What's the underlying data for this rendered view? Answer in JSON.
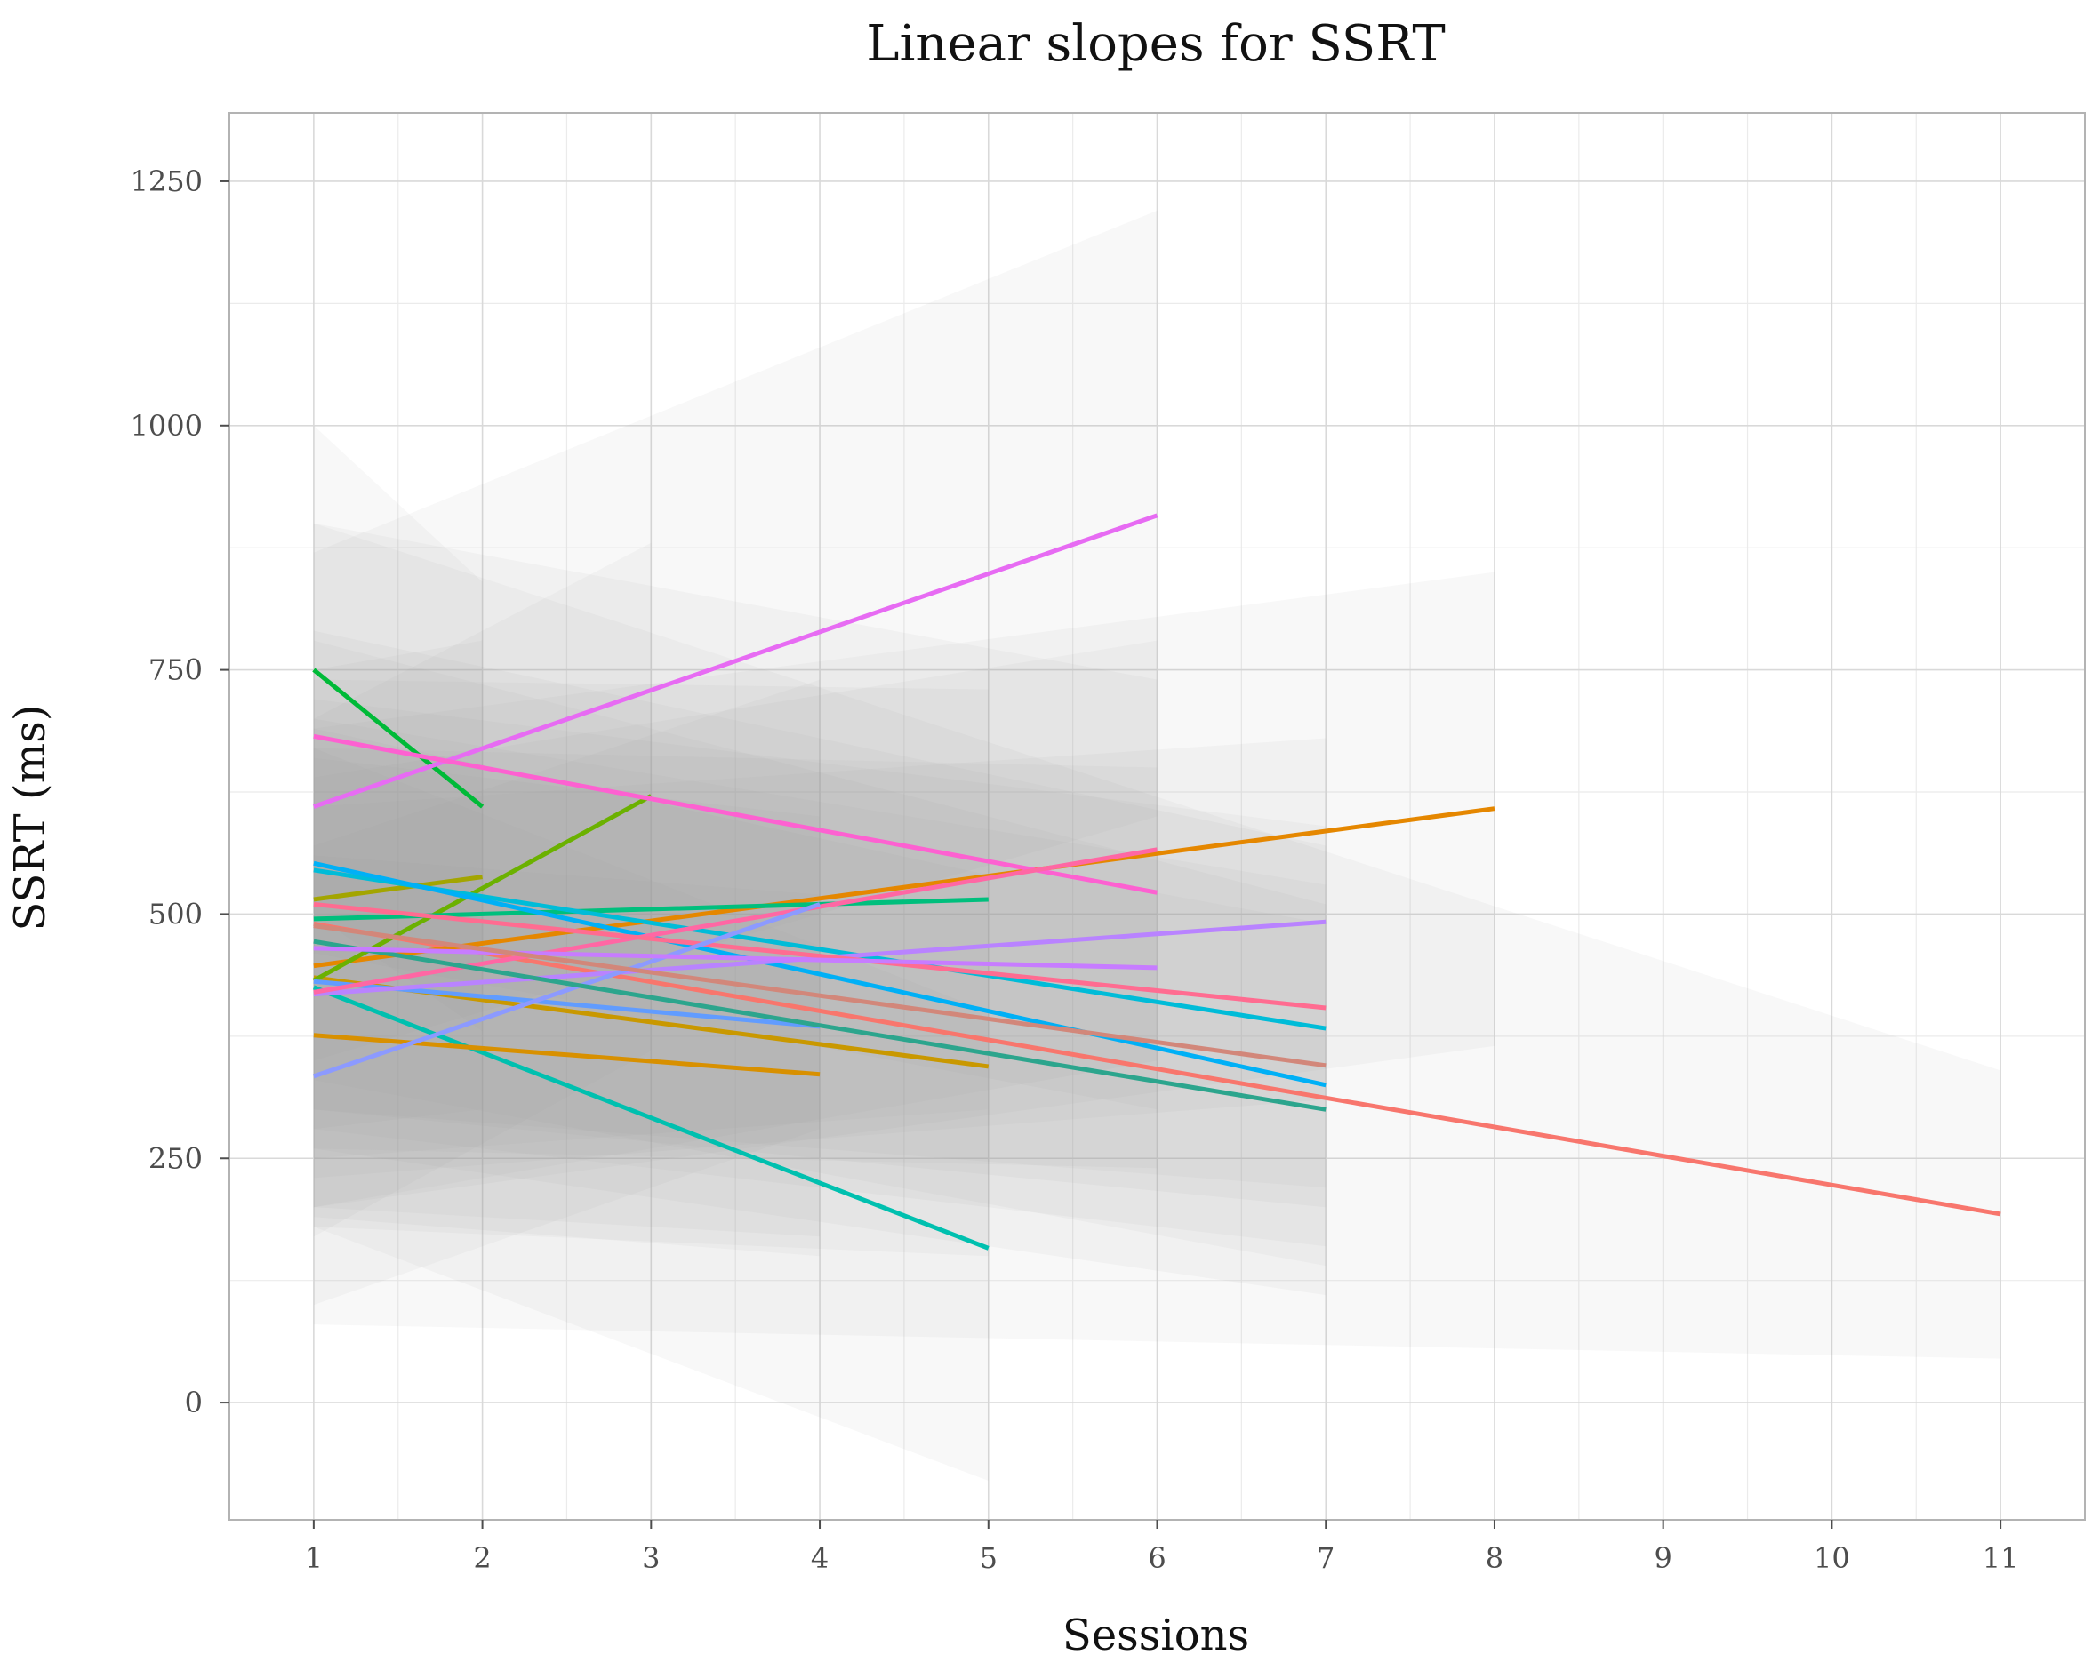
{
  "chart_data": {
    "type": "line",
    "title": "Linear slopes for SSRT",
    "xlabel": "Sessions",
    "ylabel": "SSRT (ms)",
    "xlim": [
      0.5,
      11.5
    ],
    "ylim": [
      -120,
      1320
    ],
    "x_ticks": [
      "1",
      "2",
      "3",
      "4",
      "5",
      "6",
      "7",
      "8",
      "9",
      "10",
      "11"
    ],
    "y_ticks": [
      "0",
      "250",
      "500",
      "750",
      "1000",
      "1250"
    ],
    "grid": true,
    "legend": "none",
    "confidence_bands": true,
    "series": [
      {
        "color": "#F8766D",
        "x": [
          1,
          11
        ],
        "y": [
          490,
          193
        ],
        "band": [
          [
            80,
            900
          ],
          [
            45,
            340
          ]
        ]
      },
      {
        "color": "#E58700",
        "x": [
          1,
          8
        ],
        "y": [
          447,
          608
        ],
        "band": [
          [
            200,
            690
          ],
          [
            365,
            850
          ]
        ]
      },
      {
        "color": "#C99800",
        "x": [
          1,
          5
        ],
        "y": [
          435,
          344
        ],
        "band": [
          [
            180,
            690
          ],
          [
            150,
            540
          ]
        ]
      },
      {
        "color": "#A3A500",
        "x": [
          1,
          2
        ],
        "y": [
          515,
          538
        ],
        "band": [
          [
            280,
            750
          ],
          [
            300,
            780
          ]
        ]
      },
      {
        "color": "#6BB100",
        "x": [
          1,
          3
        ],
        "y": [
          432,
          621
        ],
        "band": [
          [
            170,
            700
          ],
          [
            360,
            880
          ]
        ]
      },
      {
        "color": "#00BA38",
        "x": [
          1,
          2
        ],
        "y": [
          750,
          610
        ],
        "band": [
          [
            500,
            1000
          ],
          [
            380,
            840
          ]
        ]
      },
      {
        "color": "#00BF7D",
        "x": [
          1,
          5
        ],
        "y": [
          495,
          515
        ],
        "band": [
          [
            250,
            740
          ],
          [
            300,
            730
          ]
        ]
      },
      {
        "color": "#00C0AF",
        "x": [
          1,
          5
        ],
        "y": [
          425,
          158
        ],
        "band": [
          [
            180,
            670
          ],
          [
            -80,
            400
          ]
        ]
      },
      {
        "color": "#00BCD8",
        "x": [
          1,
          7
        ],
        "y": [
          545,
          383
        ],
        "band": [
          [
            300,
            790
          ],
          [
            200,
            570
          ]
        ]
      },
      {
        "color": "#00B0F6",
        "x": [
          1,
          7
        ],
        "y": [
          552,
          325
        ],
        "band": [
          [
            330,
            780
          ],
          [
            140,
            510
          ]
        ]
      },
      {
        "color": "#619CFF",
        "x": [
          1,
          4
        ],
        "y": [
          431,
          385
        ],
        "band": [
          [
            200,
            660
          ],
          [
            170,
            600
          ]
        ]
      },
      {
        "color": "#B983FF",
        "x": [
          1,
          7
        ],
        "y": [
          418,
          492
        ],
        "band": [
          [
            230,
            610
          ],
          [
            310,
            680
          ]
        ]
      },
      {
        "color": "#E76BF3",
        "x": [
          1,
          6
        ],
        "y": [
          610,
          908
        ],
        "band": [
          [
            350,
            870
          ],
          [
            600,
            1220
          ]
        ]
      },
      {
        "color": "#FD61D1",
        "x": [
          1,
          6
        ],
        "y": [
          682,
          522
        ],
        "band": [
          [
            460,
            900
          ],
          [
            300,
            740
          ]
        ]
      },
      {
        "color": "#FF67A4",
        "x": [
          1,
          6
        ],
        "y": [
          420,
          566
        ],
        "band": [
          [
            200,
            640
          ],
          [
            350,
            780
          ]
        ]
      },
      {
        "color": "#FF6C91",
        "x": [
          1,
          7
        ],
        "y": [
          510,
          404
        ],
        "band": [
          [
            300,
            720
          ],
          [
            220,
            590
          ]
        ]
      },
      {
        "color": "#D89000",
        "x": [
          1,
          4
        ],
        "y": [
          376,
          336
        ],
        "band": [
          [
            190,
            560
          ],
          [
            150,
            520
          ]
        ]
      },
      {
        "color": "#8C9AFF",
        "x": [
          1,
          4
        ],
        "y": [
          334,
          510
        ],
        "band": [
          [
            100,
            570
          ],
          [
            280,
            740
          ]
        ]
      },
      {
        "color": "#2CA58D",
        "x": [
          1,
          7
        ],
        "y": [
          472,
          300
        ],
        "band": [
          [
            260,
            680
          ],
          [
            110,
            490
          ]
        ]
      },
      {
        "color": "#C77CFF",
        "x": [
          1,
          6
        ],
        "y": [
          465,
          445
        ],
        "band": [
          [
            260,
            670
          ],
          [
            240,
            650
          ]
        ]
      },
      {
        "color": "#D2877A",
        "x": [
          1,
          7
        ],
        "y": [
          488,
          345
        ],
        "band": [
          [
            280,
            700
          ],
          [
            160,
            530
          ]
        ]
      }
    ]
  }
}
